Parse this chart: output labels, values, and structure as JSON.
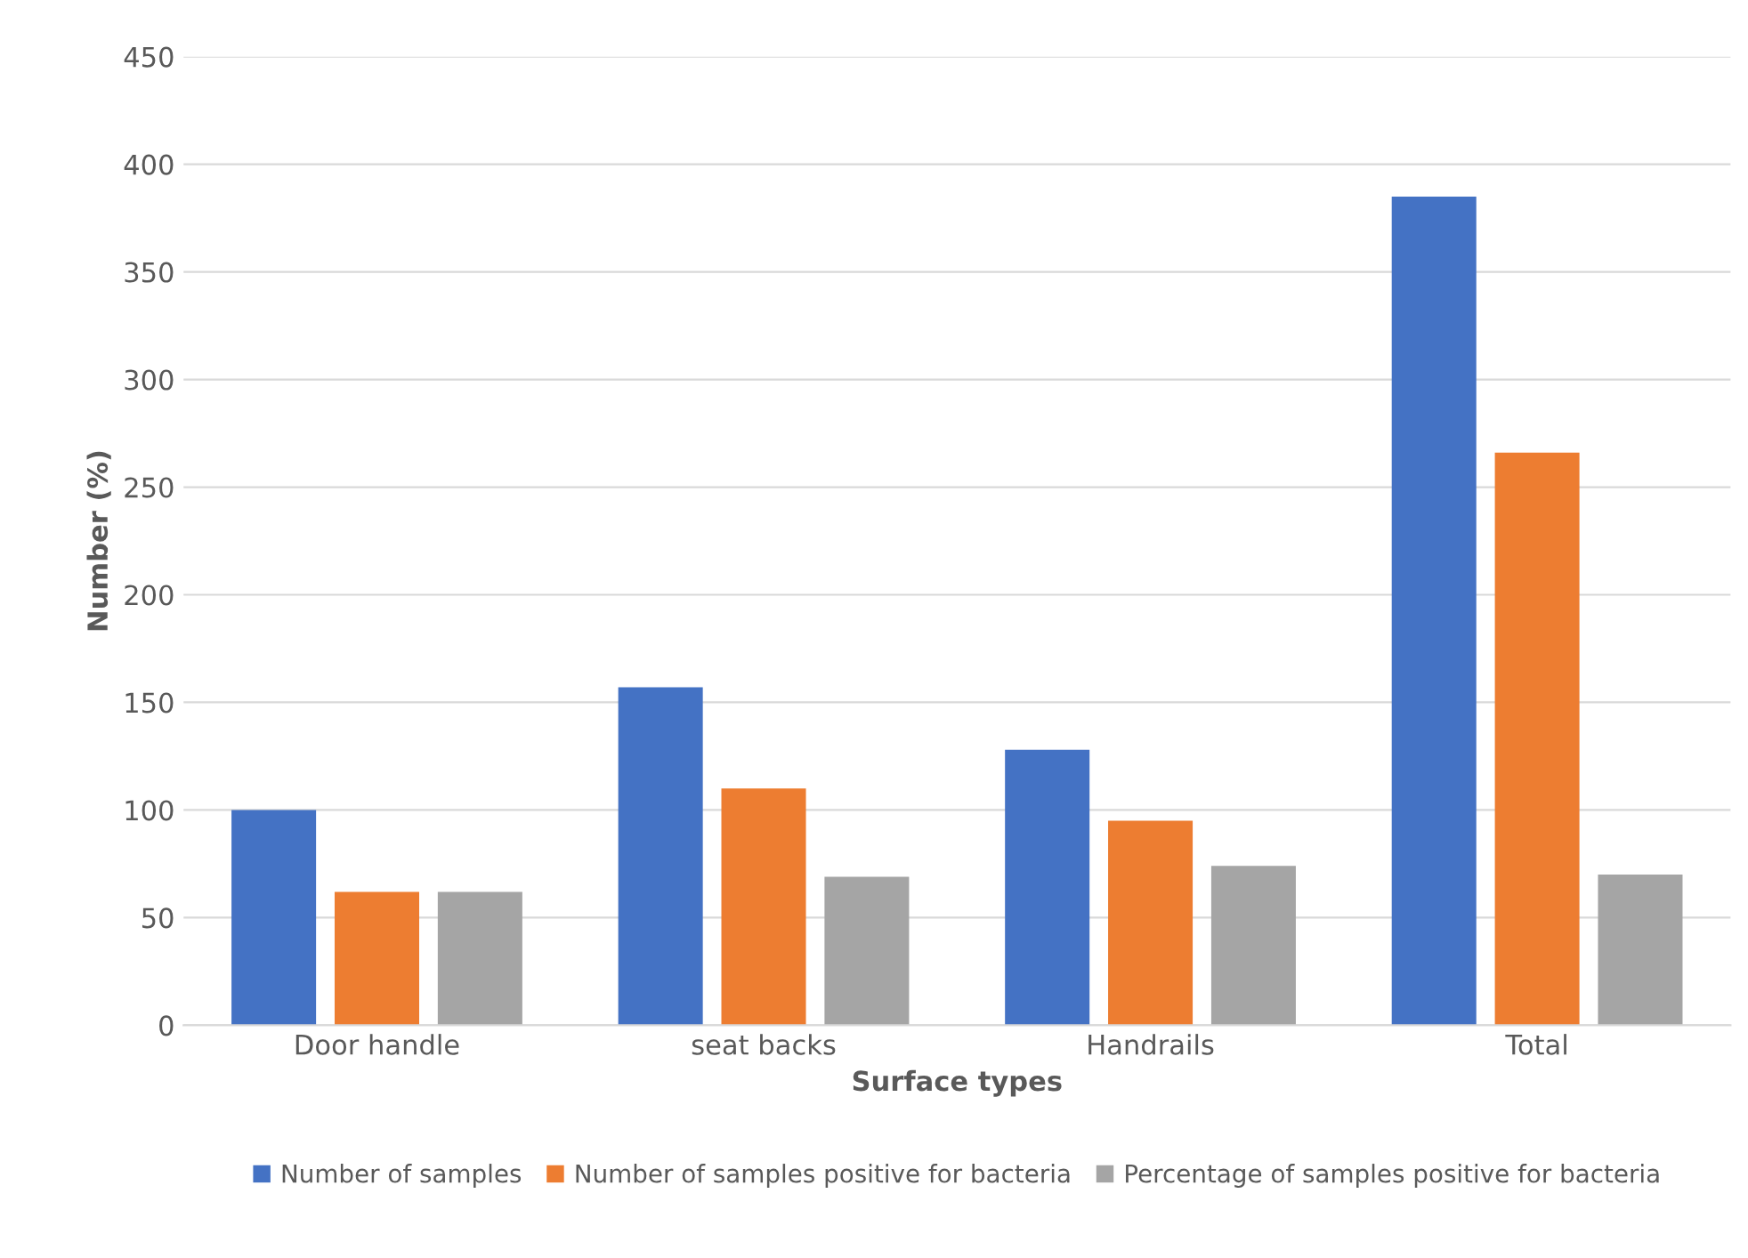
{
  "chart_data": {
    "type": "bar",
    "xlabel": "Surface types",
    "ylabel": "Number (%)",
    "categories": [
      "Door handle",
      "seat backs",
      "Handrails",
      "Total"
    ],
    "series": [
      {
        "name": "Number of samples",
        "color": "#4472c4",
        "values": [
          100,
          157,
          128,
          385
        ]
      },
      {
        "name": "Number of samples positive for bacteria",
        "color": "#ed7d31",
        "values": [
          62,
          110,
          95,
          266
        ]
      },
      {
        "name": "Percentage of samples positive for bacteria",
        "color": "#a5a5a5",
        "values": [
          62,
          69,
          74,
          70
        ]
      }
    ],
    "ylim": [
      0,
      450
    ],
    "yticks": [
      0,
      50,
      100,
      150,
      200,
      250,
      300,
      350,
      400,
      450
    ],
    "grid": "y",
    "legend": "bottom"
  }
}
